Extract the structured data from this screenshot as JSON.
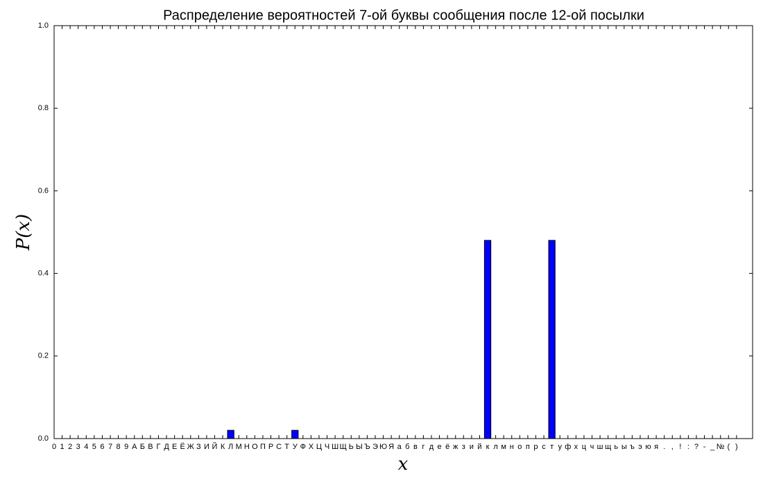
{
  "chart_data": {
    "type": "bar",
    "title": "Распределение вероятностей 7-ой буквы сообщения после 12-ой посылки",
    "x_label": "x",
    "y_label": "P(x)",
    "categories": [
      "0",
      "1",
      "2",
      "3",
      "4",
      "5",
      "6",
      "7",
      "8",
      "9",
      "А",
      "Б",
      "В",
      "Г",
      "Д",
      "Е",
      "Ё",
      "Ж",
      "З",
      "И",
      "Й",
      "К",
      "Л",
      "М",
      "Н",
      "О",
      "П",
      "Р",
      "С",
      "Т",
      "У",
      "Ф",
      "Х",
      "Ц",
      "Ч",
      "Ш",
      "Щ",
      "Ь",
      "Ы",
      "Ъ",
      "Э",
      "Ю",
      "Я",
      "а",
      "б",
      "в",
      "г",
      "д",
      "е",
      "ё",
      "ж",
      "з",
      "и",
      "й",
      "к",
      "л",
      "м",
      "н",
      "о",
      "п",
      "р",
      "с",
      "т",
      "у",
      "ф",
      "х",
      "ц",
      "ч",
      "ш",
      "щ",
      "ь",
      "ы",
      "ъ",
      "э",
      "ю",
      "я",
      ".",
      ",",
      "!",
      ":",
      "?",
      "-",
      "_",
      "№",
      "(",
      ")"
    ],
    "values": [
      0,
      0,
      0,
      0,
      0,
      0,
      0,
      0,
      0,
      0,
      0,
      0,
      0,
      0,
      0,
      0,
      0,
      0,
      0,
      0,
      0,
      0,
      0.02,
      0,
      0,
      0,
      0,
      0,
      0,
      0,
      0.02,
      0,
      0,
      0,
      0,
      0,
      0,
      0,
      0,
      0,
      0,
      0,
      0,
      0,
      0,
      0,
      0,
      0,
      0,
      0,
      0,
      0,
      0,
      0,
      0.48,
      0,
      0,
      0,
      0,
      0,
      0,
      0,
      0.48,
      0,
      0,
      0,
      0,
      0,
      0,
      0,
      0,
      0,
      0,
      0,
      0,
      0,
      0,
      0,
      0,
      0,
      0,
      0,
      0,
      0,
      0,
      0
    ],
    "color": "#0000ff",
    "ylim": [
      0,
      1
    ],
    "yticks": [
      {
        "value": 0,
        "label": "0.0"
      },
      0.2,
      0.4,
      0.6,
      0.8,
      {
        "value": 1,
        "label": "1.0"
      }
    ]
  }
}
